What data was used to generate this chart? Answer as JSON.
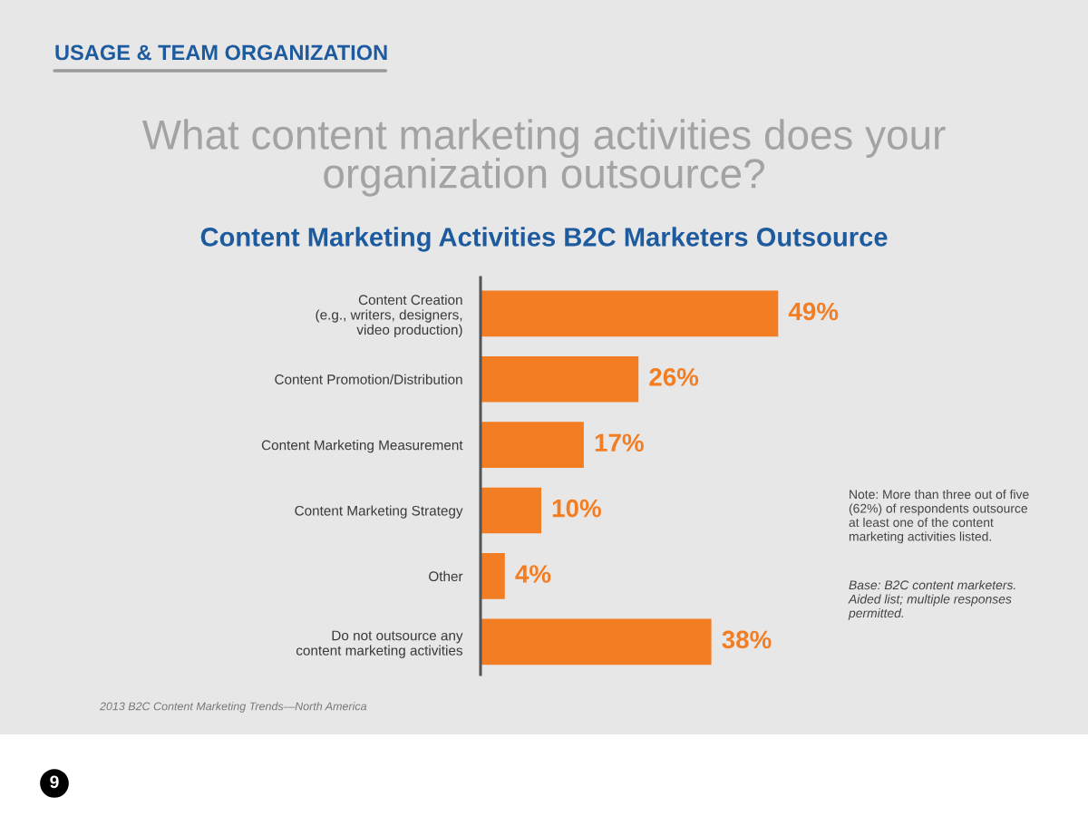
{
  "chart_data": {
    "type": "bar",
    "orientation": "horizontal",
    "title": "What content marketing activities does your\norganization outsource?",
    "subtitle": "Content Marketing Activities B2C Marketers Outsource",
    "categories": [
      "Content Creation\n(e.g., writers, designers,\nvideo production)",
      "Content Promotion/Distribution",
      "Content Marketing Measurement",
      "Content Marketing Strategy",
      "Other",
      "Do not outsource any\ncontent marketing activities"
    ],
    "values": [
      49,
      26,
      17,
      10,
      4,
      38
    ],
    "value_labels": [
      "49%",
      "26%",
      "17%",
      "10%",
      "4%",
      "38%"
    ],
    "color": "#f37d22",
    "xlim": [
      0,
      100
    ],
    "tick_labels": "y",
    "annotations": [
      "USAGE & TEAM ORGANIZATION",
      "Note: More than three out of five\n(62%) of respondents outsource\nat least one of the content\nmarketing activities listed.",
      "Base: B2C content marketers.\nAided list; multiple responses\npermitted.",
      "2013 B2C Content Marketing Trends—North America",
      "9"
    ]
  }
}
